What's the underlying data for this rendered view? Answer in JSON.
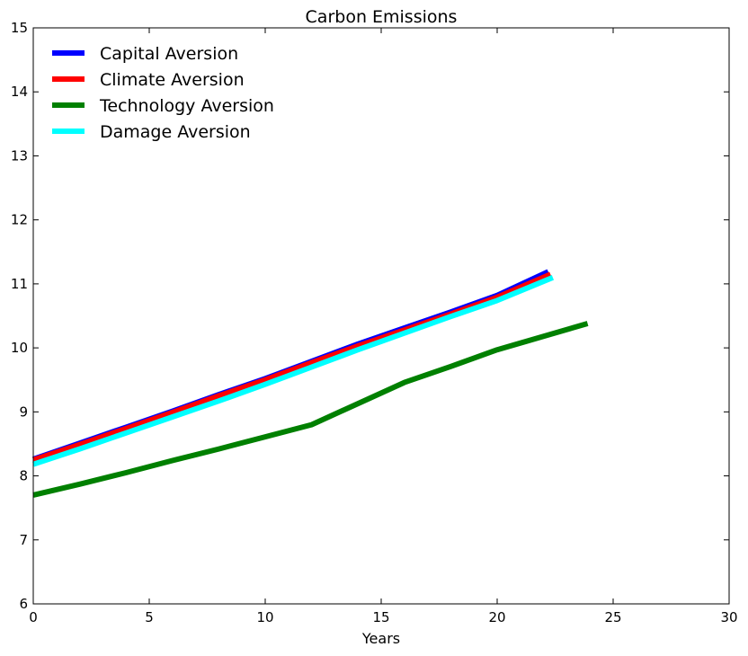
{
  "chart_data": {
    "type": "line",
    "title": "Carbon Emissions",
    "xlabel": "Years",
    "ylabel": "",
    "xlim": [
      0,
      30
    ],
    "ylim": [
      6,
      15
    ],
    "xticks": [
      0,
      5,
      10,
      15,
      20,
      25,
      30
    ],
    "yticks": [
      6,
      7,
      8,
      9,
      10,
      11,
      12,
      13,
      14,
      15
    ],
    "grid": false,
    "legend_position": "top-left",
    "series": [
      {
        "name": "Capital Aversion",
        "color": "#0000ff",
        "x": [
          0,
          2,
          4,
          6,
          8,
          10,
          12,
          14,
          16,
          18,
          20,
          22.2
        ],
        "y": [
          8.26,
          8.51,
          8.76,
          9.01,
          9.27,
          9.52,
          9.79,
          10.06,
          10.31,
          10.56,
          10.82,
          11.19
        ]
      },
      {
        "name": "Climate Aversion",
        "color": "#ff0000",
        "x": [
          0,
          2,
          4,
          6,
          8,
          10,
          12,
          14,
          16,
          18,
          20,
          22.3
        ],
        "y": [
          8.25,
          8.49,
          8.74,
          8.99,
          9.25,
          9.5,
          9.77,
          10.03,
          10.28,
          10.53,
          10.79,
          11.15
        ]
      },
      {
        "name": "Technology Aversion",
        "color": "#008000",
        "x": [
          0,
          2,
          4,
          6,
          8,
          10,
          12,
          14,
          16,
          18,
          20,
          22,
          23.9
        ],
        "y": [
          7.7,
          7.87,
          8.05,
          8.24,
          8.42,
          8.61,
          8.8,
          9.13,
          9.46,
          9.71,
          9.97,
          10.18,
          10.38
        ]
      },
      {
        "name": "Damage Aversion",
        "color": "#00ffff",
        "x": [
          0,
          2,
          4,
          6,
          8,
          10,
          12,
          14,
          16,
          18,
          20,
          22.4
        ],
        "y": [
          8.18,
          8.42,
          8.67,
          8.92,
          9.17,
          9.43,
          9.7,
          9.97,
          10.23,
          10.49,
          10.74,
          11.1
        ]
      }
    ]
  }
}
